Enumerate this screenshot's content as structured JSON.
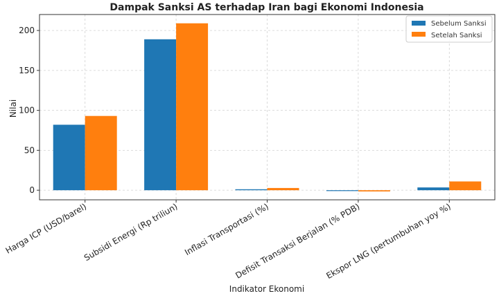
{
  "chart_data": {
    "type": "bar",
    "title": "Dampak Sanksi AS terhadap Iran bagi Ekonomi Indonesia",
    "xlabel": "Indikator Ekonomi",
    "ylabel": "Nilai",
    "categories": [
      "Harga ICP (USD/barel)",
      "Subsidi Energi (Rp triliun)",
      "Inflasi Transportasi (%)",
      "Defisit Transaksi Berjalan (% PDB)",
      "Ekspor LNG (pertumbuhan yoy %)"
    ],
    "series": [
      {
        "name": "Sebelum Sanksi",
        "color": "#1f77b4",
        "values": [
          82,
          189,
          1.2,
          -0.8,
          3.5
        ]
      },
      {
        "name": "Setelah Sanksi",
        "color": "#ff7f0e",
        "values": [
          93,
          209,
          2.8,
          -1.5,
          11
        ]
      }
    ],
    "ylim": [
      -12,
      220
    ],
    "yticks": [
      0,
      50,
      100,
      150,
      200
    ],
    "grid": true,
    "legend_position": "top-right"
  }
}
